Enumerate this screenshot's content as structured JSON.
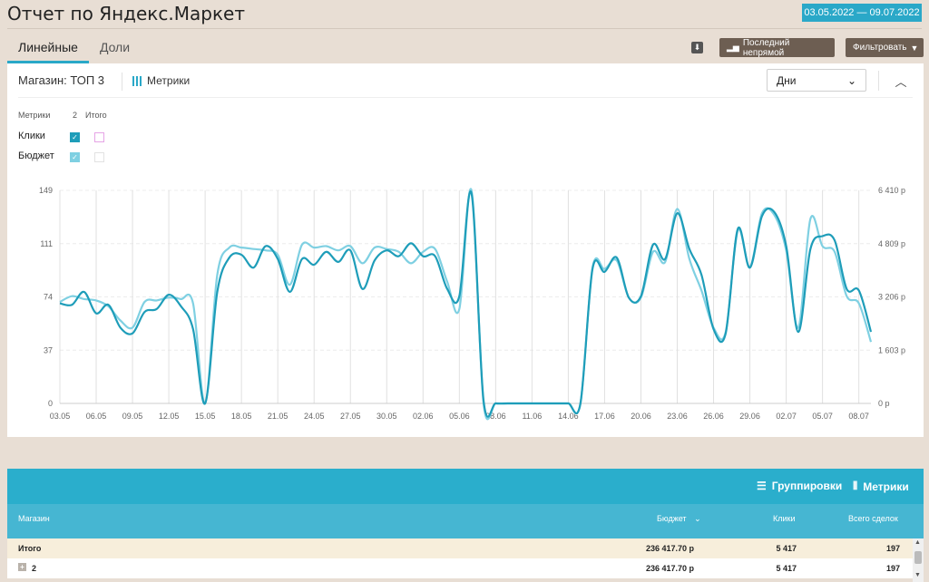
{
  "header": {
    "title": "Отчет по Яндекс.Маркет",
    "date_range": "03.05.2022 — 09.07.2022"
  },
  "tabs": [
    {
      "label": "Линейные",
      "active": true
    },
    {
      "label": "Доли",
      "active": false
    }
  ],
  "toolbar": {
    "download_icon": "download-icon",
    "attribution_label": "Последний непрямой",
    "filter_label": "Фильтровать"
  },
  "panel": {
    "store_label": "Магазин: ТОП 3",
    "metrics_label": "Метрики",
    "period_select": "Дни"
  },
  "legend": {
    "col_metrics": "Метрики",
    "col_2": "2",
    "col_total": "Итого",
    "rows": [
      {
        "label": "Клики",
        "checked": true,
        "color": "#1e9db9"
      },
      {
        "label": "Бюджет",
        "checked": true,
        "color": "#7fd0e2"
      }
    ]
  },
  "chart_data": {
    "type": "line",
    "x": [
      "03.05",
      "04.05",
      "05.05",
      "06.05",
      "07.05",
      "08.05",
      "09.05",
      "10.05",
      "11.05",
      "12.05",
      "13.05",
      "14.05",
      "15.05",
      "16.05",
      "17.05",
      "18.05",
      "19.05",
      "20.05",
      "21.05",
      "22.05",
      "23.05",
      "24.05",
      "25.05",
      "26.05",
      "27.05",
      "28.05",
      "29.05",
      "30.05",
      "31.05",
      "01.06",
      "02.06",
      "03.06",
      "04.06",
      "05.06",
      "06.06",
      "07.06",
      "08.06",
      "09.06",
      "10.06",
      "11.06",
      "12.06",
      "13.06",
      "14.06",
      "15.06",
      "16.06",
      "17.06",
      "18.06",
      "19.06",
      "20.06",
      "21.06",
      "22.06",
      "23.06",
      "24.06",
      "25.06",
      "26.06",
      "27.06",
      "28.06",
      "29.06",
      "30.06",
      "01.07",
      "02.07",
      "03.07",
      "04.07",
      "05.07",
      "06.07",
      "07.07",
      "08.07",
      "09.07"
    ],
    "x_tick_labels": [
      "03.05",
      "06.05",
      "09.05",
      "12.05",
      "15.05",
      "18.05",
      "21.05",
      "24.05",
      "27.05",
      "30.05",
      "02.06",
      "05.06",
      "08.06",
      "11.06",
      "14.06",
      "17.06",
      "20.06",
      "23.06",
      "26.06",
      "29.06",
      "02.07",
      "05.07",
      "08.07"
    ],
    "y_left_ticks": [
      "0",
      "37",
      "74",
      "111",
      "149"
    ],
    "y_right_ticks": [
      "0 р",
      "1 603 р",
      "3 206 р",
      "4 809 р",
      "6 410 р"
    ],
    "ylim_left": [
      0,
      149
    ],
    "ylim_right": [
      0,
      6410
    ],
    "grid": true,
    "series": [
      {
        "name": "Клики",
        "axis": "left",
        "color": "#1e9db9",
        "values": [
          70,
          69,
          78,
          63,
          69,
          53,
          49,
          64,
          66,
          76,
          68,
          52,
          0,
          78,
          102,
          104,
          95,
          110,
          101,
          78,
          101,
          97,
          106,
          99,
          107,
          80,
          100,
          107,
          103,
          112,
          103,
          103,
          80,
          75,
          147,
          2,
          0,
          0,
          0,
          0,
          0,
          0,
          0,
          0,
          94,
          92,
          102,
          74,
          75,
          111,
          101,
          133,
          108,
          90,
          52,
          49,
          122,
          95,
          131,
          134,
          110,
          50,
          108,
          117,
          114,
          80,
          79,
          50
        ]
      },
      {
        "name": "Бюджет",
        "axis": "left",
        "color": "#7fd0e2",
        "values": [
          71,
          75,
          73,
          72,
          68,
          58,
          53,
          71,
          72,
          74,
          73,
          70,
          0,
          90,
          109,
          109,
          108,
          107,
          104,
          83,
          111,
          109,
          110,
          107,
          110,
          98,
          109,
          108,
          106,
          98,
          106,
          108,
          85,
          66,
          149,
          0,
          0,
          0,
          0,
          0,
          0,
          0,
          0,
          0,
          95,
          94,
          100,
          74,
          74,
          106,
          99,
          136,
          101,
          79,
          53,
          50,
          121,
          95,
          133,
          132,
          107,
          53,
          129,
          110,
          106,
          75,
          70,
          43
        ]
      }
    ]
  },
  "table": {
    "groupings_label": "Группировки",
    "metrics_label": "Метрики",
    "columns": [
      "Магазин",
      "Бюджет",
      "Клики",
      "Всего сделок"
    ],
    "rows": [
      {
        "name": "Итого",
        "budget": "236 417.70 р",
        "clicks": "5 417",
        "deals": "197"
      },
      {
        "name": "2",
        "budget": "236 417.70 р",
        "clicks": "5 417",
        "deals": "197"
      }
    ]
  }
}
